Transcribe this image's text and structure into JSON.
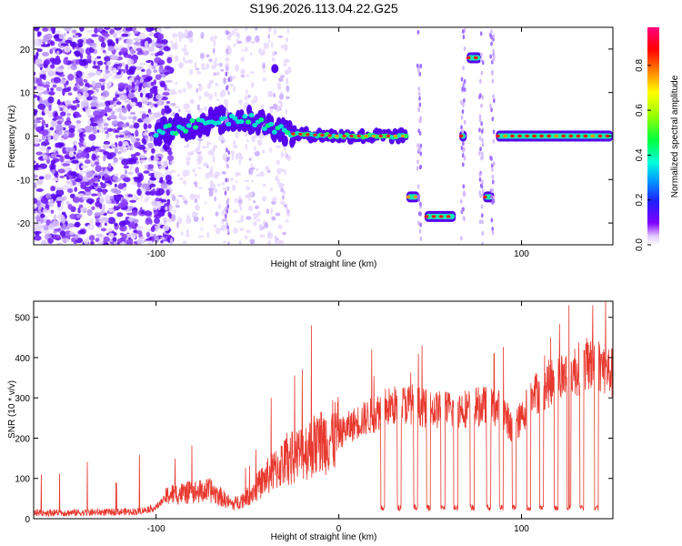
{
  "title": "S196.2026.113.04.22.G25",
  "chart_data": [
    {
      "type": "heatmap",
      "title": "S196.2026.113.04.22.G25",
      "xlabel": "Height of straight line (km)",
      "ylabel": "Frequency (Hz)",
      "xlim": [
        -167,
        150
      ],
      "ylim": [
        -25,
        25
      ],
      "xticks": [
        -100,
        0,
        100
      ],
      "yticks": [
        20,
        10,
        0,
        -10,
        -20
      ],
      "colorbar": {
        "label": "Normalized spectral amplitude",
        "range": [
          0,
          0.97
        ],
        "ticks": [
          0.0,
          0.2,
          0.4,
          0.6,
          0.8
        ]
      },
      "ridge": [
        {
          "x": -100,
          "y": 1
        },
        {
          "x": -85,
          "y": 2
        },
        {
          "x": -70,
          "y": 3.5
        },
        {
          "x": -55,
          "y": 4
        },
        {
          "x": -45,
          "y": 3.5
        },
        {
          "x": -35,
          "y": 2
        },
        {
          "x": -25,
          "y": 0.5
        },
        {
          "x": 0,
          "y": 0
        },
        {
          "x": 37,
          "y": 0
        }
      ],
      "segments": [
        {
          "x0": 37,
          "x1": 44,
          "y": -14
        },
        {
          "x0": 47,
          "x1": 64,
          "y": -18.5
        },
        {
          "x0": 66,
          "x1": 70,
          "y": 0
        },
        {
          "x0": 70,
          "x1": 78,
          "y": 18
        },
        {
          "x0": 79,
          "x1": 85,
          "y": -14
        },
        {
          "x0": 86,
          "x1": 150,
          "y": 0
        }
      ],
      "isolated": [
        {
          "x": -35,
          "y": 15.5
        }
      ]
    },
    {
      "type": "line",
      "xlabel": "Height of straight line (km)",
      "ylabel": "SNR (10 * v/v)",
      "xlim": [
        -167,
        150
      ],
      "ylim": [
        0,
        540
      ],
      "xticks": [
        -100,
        0,
        100
      ],
      "yticks": [
        0,
        100,
        200,
        300,
        400,
        500
      ],
      "series": [
        {
          "name": "SNR",
          "color": "#e8382e",
          "x": [
            -167,
            -140,
            -110,
            -100,
            -93,
            -80,
            -70,
            -58,
            -50,
            -40,
            -30,
            -20,
            -10,
            0,
            10,
            20,
            24,
            30,
            40,
            50,
            60,
            70,
            80,
            90,
            95,
            100,
            105,
            110,
            120,
            130,
            140,
            150
          ],
          "y": [
            15,
            15,
            18,
            28,
            60,
            65,
            70,
            35,
            55,
            100,
            140,
            165,
            190,
            210,
            240,
            260,
            275,
            280,
            285,
            270,
            270,
            275,
            280,
            270,
            220,
            250,
            300,
            320,
            350,
            370,
            390,
            360
          ]
        }
      ],
      "dips": [
        24,
        33,
        42,
        49,
        57,
        64,
        73,
        82,
        89,
        96,
        104,
        111,
        119,
        126,
        133,
        141
      ],
      "spikes": [
        {
          "x": -15,
          "y": 480
        },
        {
          "x": -37,
          "y": 300
        },
        {
          "x": -20,
          "y": 370
        },
        {
          "x": 18,
          "y": 420
        },
        {
          "x": 85,
          "y": 410
        },
        {
          "x": 126,
          "y": 530
        },
        {
          "x": 139,
          "y": 530
        },
        {
          "x": 146,
          "y": 540
        },
        {
          "x": 116,
          "y": 450
        }
      ]
    }
  ]
}
